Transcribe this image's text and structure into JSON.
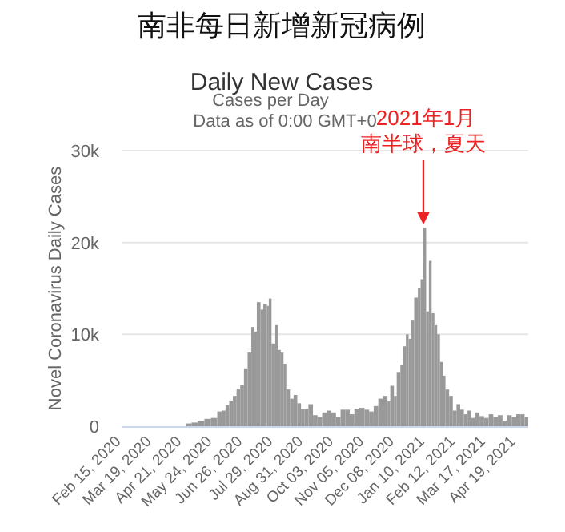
{
  "chart_data": {
    "type": "bar",
    "title": "南非每日新增新冠病例",
    "subtitle": "Daily New Cases",
    "annotations": [
      "Cases per Day",
      "Data as of 0:00 GMT+0",
      "2021年1月",
      {
        "text": "南半球，夏天",
        "x": "2021-01-08",
        "y": 21600
      }
    ],
    "ylabel": "Novel Coronavirus Daily Cases",
    "color": "#999999",
    "grid": "y",
    "xlim": [
      "2020-02-15",
      "2021-05-02"
    ],
    "xticks": [
      {
        "value": "2020-02-15",
        "label": "Feb 15, 2020"
      },
      {
        "value": "2020-03-19",
        "label": "Mar 19, 2020"
      },
      {
        "value": "2020-04-21",
        "label": "Apr 21, 2020"
      },
      {
        "value": "2020-05-24",
        "label": "May 24, 2020"
      },
      {
        "value": "2020-06-26",
        "label": "Jun 26, 2020"
      },
      {
        "value": "2020-07-29",
        "label": "Jul 29, 2020"
      },
      {
        "value": "2020-08-31",
        "label": "Aug 31, 2020"
      },
      {
        "value": "2020-10-03",
        "label": "Oct 03, 2020"
      },
      {
        "value": "2020-11-05",
        "label": "Nov 05, 2020"
      },
      {
        "value": "2020-12-08",
        "label": "Dec 08, 2020"
      },
      {
        "value": "2021-01-10",
        "label": "Jan 10, 2021"
      },
      {
        "value": "2021-02-12",
        "label": "Feb 12, 2021"
      },
      {
        "value": "2021-03-17",
        "label": "Mar 17, 2021"
      },
      {
        "value": "2021-04-19",
        "label": "Apr 19, 2021"
      }
    ],
    "ylim": [
      0,
      30000
    ],
    "yticks": [
      0,
      {
        "value": 10000,
        "label": "10k"
      },
      {
        "value": 20000,
        "label": "20k"
      },
      {
        "value": 30000,
        "label": "30k"
      }
    ],
    "x": [
      "2020-02-15",
      "2020-03-01",
      "2020-03-15",
      "2020-03-25",
      "2020-04-05",
      "2020-04-15",
      "2020-04-25",
      "2020-05-01",
      "2020-05-08",
      "2020-05-15",
      "2020-05-22",
      "2020-05-29",
      "2020-06-03",
      "2020-06-07",
      "2020-06-11",
      "2020-06-15",
      "2020-06-19",
      "2020-06-23",
      "2020-06-27",
      "2020-07-01",
      "2020-07-05",
      "2020-07-08",
      "2020-07-11",
      "2020-07-15",
      "2020-07-18",
      "2020-07-22",
      "2020-07-24",
      "2020-07-27",
      "2020-07-31",
      "2020-08-03",
      "2020-08-06",
      "2020-08-09",
      "2020-08-12",
      "2020-08-16",
      "2020-08-20",
      "2020-08-24",
      "2020-08-28",
      "2020-09-01",
      "2020-09-05",
      "2020-09-10",
      "2020-09-15",
      "2020-09-20",
      "2020-09-25",
      "2020-09-30",
      "2020-10-05",
      "2020-10-10",
      "2020-10-15",
      "2020-10-20",
      "2020-10-25",
      "2020-10-30",
      "2020-11-05",
      "2020-11-10",
      "2020-11-15",
      "2020-11-20",
      "2020-11-25",
      "2020-11-30",
      "2020-12-03",
      "2020-12-07",
      "2020-12-10",
      "2020-12-14",
      "2020-12-17",
      "2020-12-20",
      "2020-12-23",
      "2020-12-26",
      "2020-12-29",
      "2021-01-02",
      "2021-01-05",
      "2021-01-08",
      "2021-01-11",
      "2021-01-14",
      "2021-01-17",
      "2021-01-20",
      "2021-01-23",
      "2021-01-26",
      "2021-01-29",
      "2021-02-01",
      "2021-02-05",
      "2021-02-09",
      "2021-02-13",
      "2021-02-17",
      "2021-02-21",
      "2021-02-25",
      "2021-03-01",
      "2021-03-05",
      "2021-03-10",
      "2021-03-15",
      "2021-03-20",
      "2021-03-25",
      "2021-03-30",
      "2021-04-04",
      "2021-04-09",
      "2021-04-14",
      "2021-04-19",
      "2021-04-24",
      "2021-04-28"
    ],
    "values": [
      0,
      0,
      0,
      0,
      0,
      0,
      300,
      400,
      600,
      800,
      900,
      1600,
      1700,
      2300,
      2800,
      3300,
      4000,
      4500,
      6300,
      8100,
      10800,
      10300,
      13500,
      12700,
      13300,
      13100,
      13900,
      9000,
      11000,
      8300,
      8100,
      6800,
      4000,
      3000,
      3400,
      2500,
      1900,
      1900,
      2400,
      1200,
      1000,
      1500,
      1700,
      1500,
      1000,
      1800,
      1800,
      1300,
      1900,
      2000,
      1800,
      1600,
      2200,
      3000,
      3300,
      2700,
      4400,
      3300,
      5900,
      6700,
      8700,
      10000,
      9500,
      11500,
      14000,
      15000,
      16000,
      21600,
      12500,
      18000,
      12300,
      11000,
      10000,
      7000,
      5500,
      4000,
      3300,
      1700,
      2400,
      1800,
      1300,
      1700,
      900,
      1500,
      1100,
      900,
      1300,
      1000,
      1200,
      600,
      1200,
      1000,
      1300,
      1300,
      1000
    ]
  }
}
